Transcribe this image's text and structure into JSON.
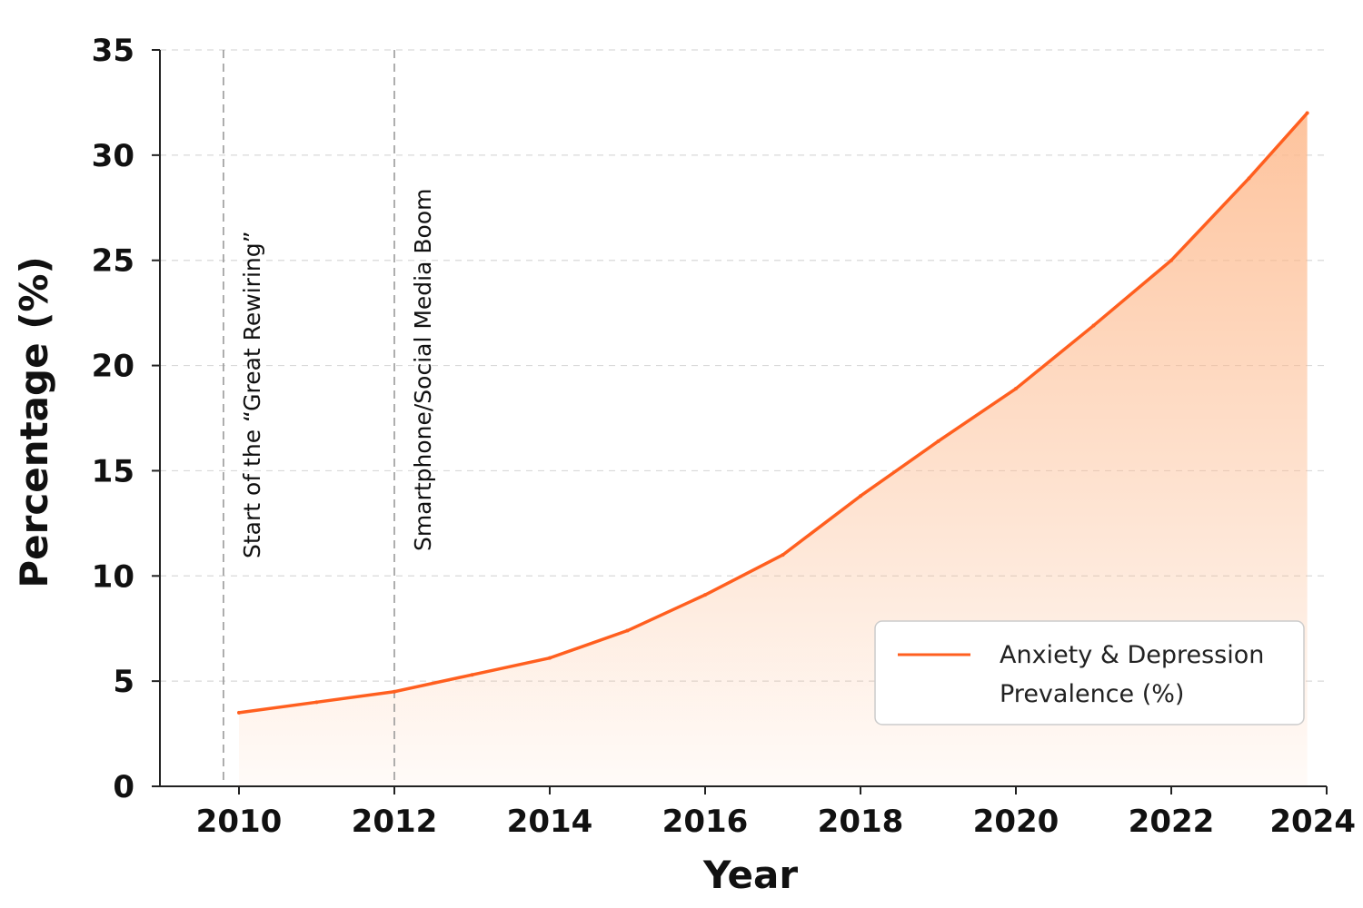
{
  "chart_data": {
    "type": "area",
    "title": "",
    "xlabel": "Year",
    "ylabel": "Percentage (%)",
    "xlim": [
      2009,
      2024
    ],
    "ylim": [
      0,
      35
    ],
    "x_ticks": [
      "2010",
      "2012",
      "2014",
      "2016",
      "2018",
      "2020",
      "2022",
      "2024"
    ],
    "y_ticks": [
      "0",
      "5",
      "10",
      "15",
      "20",
      "25",
      "30",
      "35"
    ],
    "grid": "horizontal dashed",
    "legend_position": "bottom-right",
    "series": [
      {
        "name": "Anxiety & Depression Prevalence (%)",
        "legend_line1": "Anxiety & Depression",
        "legend_line2": "Prevalence (%)",
        "color": "#ff5f1f",
        "fill_color": "#fdb98c",
        "x": [
          2010,
          2011,
          2012,
          2013,
          2014,
          2015,
          2016,
          2017,
          2018,
          2019,
          2020,
          2021,
          2022,
          2023,
          2023.75
        ],
        "values": [
          3.5,
          4.0,
          4.5,
          5.3,
          6.1,
          7.4,
          9.1,
          11.0,
          13.8,
          16.4,
          18.9,
          21.9,
          25.0,
          28.9,
          32.0
        ]
      }
    ],
    "annotations": [
      {
        "x": 2009.8,
        "text": "Start of the “Great Rewiring”"
      },
      {
        "x": 2012,
        "text": "Smartphone/Social Media Boom"
      }
    ]
  }
}
